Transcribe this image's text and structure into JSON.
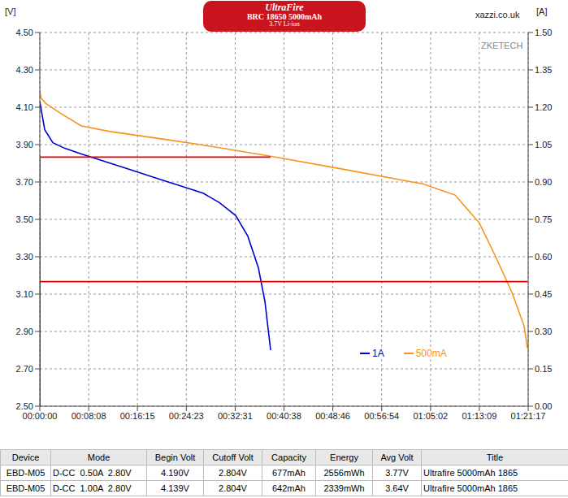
{
  "chart_data": {
    "type": "line",
    "header": {
      "badge": [
        "UltraFire",
        "BRC 18650 5000mAh",
        "3.7V Li-ion"
      ],
      "site": "xazzi.co.uk"
    },
    "watermark": "ZKETECH",
    "y_label": "[V]",
    "y2_label": "[A]",
    "xlim": [
      0,
      4877
    ],
    "xticks": [
      {
        "value": 0,
        "label": "00:00:00"
      },
      {
        "value": 488,
        "label": "00:08:08"
      },
      {
        "value": 975,
        "label": "00:16:15"
      },
      {
        "value": 1463,
        "label": "00:24:23"
      },
      {
        "value": 1951,
        "label": "00:32:31"
      },
      {
        "value": 2438,
        "label": "00:40:38"
      },
      {
        "value": 2926,
        "label": "00:48:46"
      },
      {
        "value": 3414,
        "label": "00:56:54"
      },
      {
        "value": 3902,
        "label": "01:05:02"
      },
      {
        "value": 4389,
        "label": "01:13:09"
      },
      {
        "value": 4877,
        "label": "01:21:17"
      }
    ],
    "ylim": [
      2.5,
      4.5
    ],
    "yticks": [
      {
        "value": 2.5,
        "label": "2.50"
      },
      {
        "value": 2.7,
        "label": "2.70"
      },
      {
        "value": 2.9,
        "label": "2.90"
      },
      {
        "value": 3.1,
        "label": "3.10"
      },
      {
        "value": 3.3,
        "label": "3.30"
      },
      {
        "value": 3.5,
        "label": "3.50"
      },
      {
        "value": 3.7,
        "label": "3.70"
      },
      {
        "value": 3.9,
        "label": "3.90"
      },
      {
        "value": 4.1,
        "label": "4.10"
      },
      {
        "value": 4.3,
        "label": "4.30"
      },
      {
        "value": 4.5,
        "label": "4.50"
      }
    ],
    "y2lim": [
      0,
      1.5
    ],
    "y2ticks": [
      {
        "value": 0,
        "label": "0.00"
      },
      {
        "value": 0.15,
        "label": "0.15"
      },
      {
        "value": 0.3,
        "label": "0.30"
      },
      {
        "value": 0.45,
        "label": "0.45"
      },
      {
        "value": 0.6,
        "label": "0.60"
      },
      {
        "value": 0.75,
        "label": "0.75"
      },
      {
        "value": 0.9,
        "label": "0.90"
      },
      {
        "value": 1.05,
        "label": "1.05"
      },
      {
        "value": 1.2,
        "label": "1.20"
      },
      {
        "value": 1.35,
        "label": "1.35"
      },
      {
        "value": 1.5,
        "label": "1.50"
      }
    ],
    "grid": true,
    "legend": "bottom-right",
    "series": [
      {
        "name": "1A",
        "color": "#0000cc",
        "x": [
          0,
          49,
          130,
          250,
          414,
          820,
          1225,
          1631,
          1793,
          1956,
          2077,
          2183,
          2248,
          2305
        ],
        "values": [
          4.13,
          3.98,
          3.91,
          3.88,
          3.85,
          3.78,
          3.71,
          3.64,
          3.59,
          3.52,
          3.41,
          3.24,
          3.06,
          2.8
        ]
      },
      {
        "name": "500mA",
        "color": "#f7931e",
        "x": [
          0,
          10,
          60,
          200,
          414,
          700,
          1225,
          1600,
          2280,
          3011,
          3823,
          4147,
          4390,
          4552,
          4714,
          4836,
          4870
        ],
        "values": [
          4.19,
          4.15,
          4.12,
          4.07,
          4.0,
          3.97,
          3.93,
          3.9,
          3.84,
          3.77,
          3.69,
          3.63,
          3.48,
          3.3,
          3.11,
          2.93,
          2.81
        ]
      },
      {
        "color": "#e00000",
        "axis": "y2",
        "x": [
          0,
          0,
          2305
        ],
        "values": [
          0,
          1.0,
          1.0
        ]
      },
      {
        "color": "#e00000",
        "axis": "y2",
        "x": [
          0,
          0,
          1500,
          3000,
          4870
        ],
        "values": [
          0,
          0.5,
          0.5,
          0.5,
          0.5
        ]
      }
    ],
    "table": {
      "columns": [
        "Device",
        "Mode",
        "Begin Volt",
        "Cutoff Volt",
        "Capacity",
        "Energy",
        "Avg Volt",
        "Title"
      ],
      "rows": [
        [
          "EBD-M05",
          "D-CC  0.50A  2.80V",
          "4.190V",
          "2.804V",
          "677mAh",
          "2556mWh",
          "3.77V",
          "Ultrafire 5000mAh 1865"
        ],
        [
          "EBD-M05",
          "D-CC  1.00A  2.80V",
          "4.139V",
          "2.804V",
          "642mAh",
          "2339mWh",
          "3.64V",
          "Ultrafire 5000mAh 1865"
        ]
      ]
    }
  }
}
